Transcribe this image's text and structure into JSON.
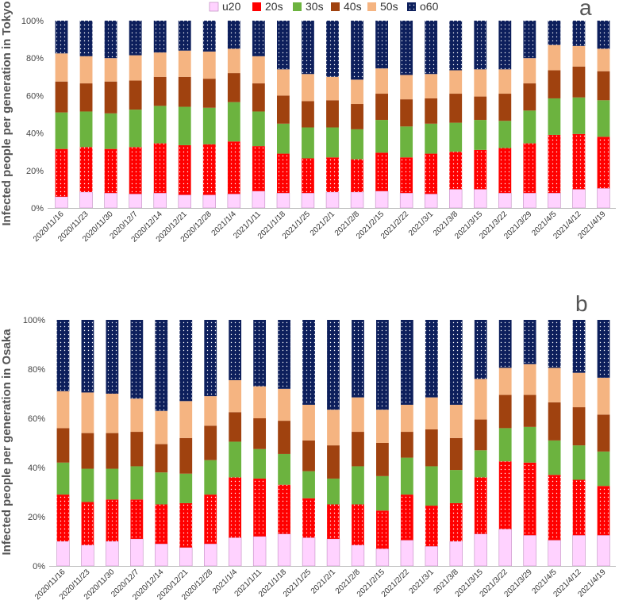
{
  "legend": [
    {
      "key": "u20",
      "label": "u20",
      "color": "#ffd2ff"
    },
    {
      "key": "20s",
      "label": "20s",
      "color": "#ff0000"
    },
    {
      "key": "30s",
      "label": "30s",
      "color": "#6cb33f"
    },
    {
      "key": "40s",
      "label": "40s",
      "color": "#a0420f"
    },
    {
      "key": "50s",
      "label": "50s",
      "color": "#f5b481"
    },
    {
      "key": "o60",
      "label": "o60",
      "color": "#0d1f5c"
    }
  ],
  "chart_data": [
    {
      "type": "bar",
      "stacked": true,
      "panel_label": "a",
      "ylabel": "Infected people per generation in Tokyo",
      "ylim": [
        0,
        100
      ],
      "yticks": [
        "0%",
        "20%",
        "40%",
        "60%",
        "80%",
        "100%"
      ],
      "categories": [
        "2020/11/16",
        "2020/11/23",
        "2020/11/30",
        "2020/12/7",
        "2020/12/14",
        "2020/12/21",
        "2020/12/28",
        "2021/1/4",
        "2021/1/11",
        "2021/1/18",
        "2021/1/25",
        "2021/2/1",
        "2021/2/8",
        "2021/2/15",
        "2021/2/22",
        "2021/3/1",
        "2021/3/8",
        "2021/3/15",
        "2021/3/22",
        "2021/3/29",
        "2021/4/5",
        "2021/4/12",
        "2021/4/19"
      ],
      "series": [
        {
          "name": "u20",
          "values": [
            6,
            8.5,
            8,
            7.5,
            8,
            7,
            7,
            7.5,
            9,
            8,
            8,
            8.5,
            8.5,
            9,
            8,
            7.5,
            10,
            10,
            8,
            8,
            8,
            10,
            10.5
          ]
        },
        {
          "name": "20s",
          "values": [
            25.5,
            24,
            23.5,
            25,
            26.5,
            26.5,
            27,
            28,
            24,
            21,
            18.5,
            18.5,
            17.5,
            20.5,
            19,
            21.5,
            20,
            21,
            24,
            26.5,
            31,
            29.5,
            27.5
          ]
        },
        {
          "name": "30s",
          "values": [
            19.5,
            19,
            19,
            20,
            20,
            20.5,
            19.5,
            21,
            18.5,
            16,
            16.5,
            16,
            16,
            17.5,
            16.5,
            16,
            15.5,
            16,
            14.5,
            17.5,
            19.5,
            19.5,
            19.5
          ]
        },
        {
          "name": "40s",
          "values": [
            16.5,
            15,
            17,
            15.5,
            15.5,
            16,
            15.5,
            15.5,
            15,
            15,
            14,
            14.5,
            13.5,
            14,
            14.5,
            13.5,
            15.5,
            12.5,
            14.5,
            14.5,
            15,
            16.5,
            15.5
          ]
        },
        {
          "name": "50s",
          "values": [
            15,
            14.5,
            12.5,
            13.5,
            13,
            14,
            14.5,
            13,
            14.5,
            14,
            14.5,
            12.5,
            13,
            13.5,
            13,
            13,
            12.5,
            14.5,
            13,
            13.5,
            13.5,
            11,
            12
          ]
        },
        {
          "name": "o60",
          "values": [
            17.5,
            19,
            20,
            18.5,
            17,
            16,
            16.5,
            15,
            19,
            26,
            28.5,
            30,
            31.5,
            25.5,
            29,
            28.5,
            26.5,
            26,
            26,
            20,
            13,
            13.5,
            15
          ]
        }
      ]
    },
    {
      "type": "bar",
      "stacked": true,
      "panel_label": "b",
      "ylabel": "Infected people per generation in Osaka",
      "ylim": [
        0,
        100
      ],
      "yticks": [
        "0%",
        "20%",
        "40%",
        "60%",
        "80%",
        "100%"
      ],
      "categories": [
        "2020/11/16",
        "2020/11/23",
        "2020/11/30",
        "2020/12/7",
        "2020/12/14",
        "2020/12/21",
        "2020/12/28",
        "2021/1/4",
        "2021/1/11",
        "2021/1/18",
        "2021/1/25",
        "2021/2/1",
        "2021/2/8",
        "2021/2/15",
        "2021/2/22",
        "2021/3/1",
        "2021/3/8",
        "2021/3/15",
        "2021/3/22",
        "2021/3/29",
        "2021/4/5",
        "2021/4/12",
        "2021/4/19"
      ],
      "series": [
        {
          "name": "u20",
          "values": [
            10,
            8.5,
            10,
            11,
            9,
            7.5,
            9,
            11.5,
            12,
            13,
            11.5,
            11,
            8.5,
            7,
            10.5,
            8,
            10,
            13,
            15,
            12.5,
            10.5,
            12.5,
            12.5
          ]
        },
        {
          "name": "20s",
          "values": [
            19,
            17.5,
            17,
            16,
            16,
            18,
            20,
            24.5,
            23.5,
            20,
            16,
            14,
            16.5,
            15.5,
            18.5,
            16.5,
            15.5,
            23,
            27.5,
            29.5,
            26.5,
            22.5,
            20
          ]
        },
        {
          "name": "30s",
          "values": [
            13,
            13.5,
            12.5,
            13.5,
            13,
            12,
            14,
            14.5,
            12,
            12.5,
            11,
            10.5,
            15.5,
            14,
            15,
            16,
            13.5,
            11,
            13.5,
            14.5,
            14,
            14,
            14
          ]
        },
        {
          "name": "40s",
          "values": [
            14,
            14.5,
            14.5,
            14,
            11.5,
            14.5,
            14,
            12,
            12.5,
            13.5,
            12.5,
            13.5,
            14,
            13.5,
            10.5,
            15,
            13,
            12.5,
            13.5,
            13,
            15.5,
            15.5,
            15
          ]
        },
        {
          "name": "50s",
          "values": [
            15,
            16.5,
            16,
            13.5,
            13.5,
            15,
            12,
            13,
            13,
            13,
            14.5,
            14.5,
            14,
            13.5,
            11,
            13,
            13.5,
            16.5,
            11,
            12.5,
            14,
            14,
            15
          ]
        },
        {
          "name": "o60",
          "values": [
            29,
            29.5,
            30,
            32,
            37,
            33,
            31,
            24.5,
            27,
            28,
            34.5,
            36.5,
            31.5,
            36.5,
            34.5,
            31.5,
            34.5,
            24,
            19.5,
            18,
            19.5,
            21.5,
            23.5
          ]
        }
      ]
    }
  ]
}
